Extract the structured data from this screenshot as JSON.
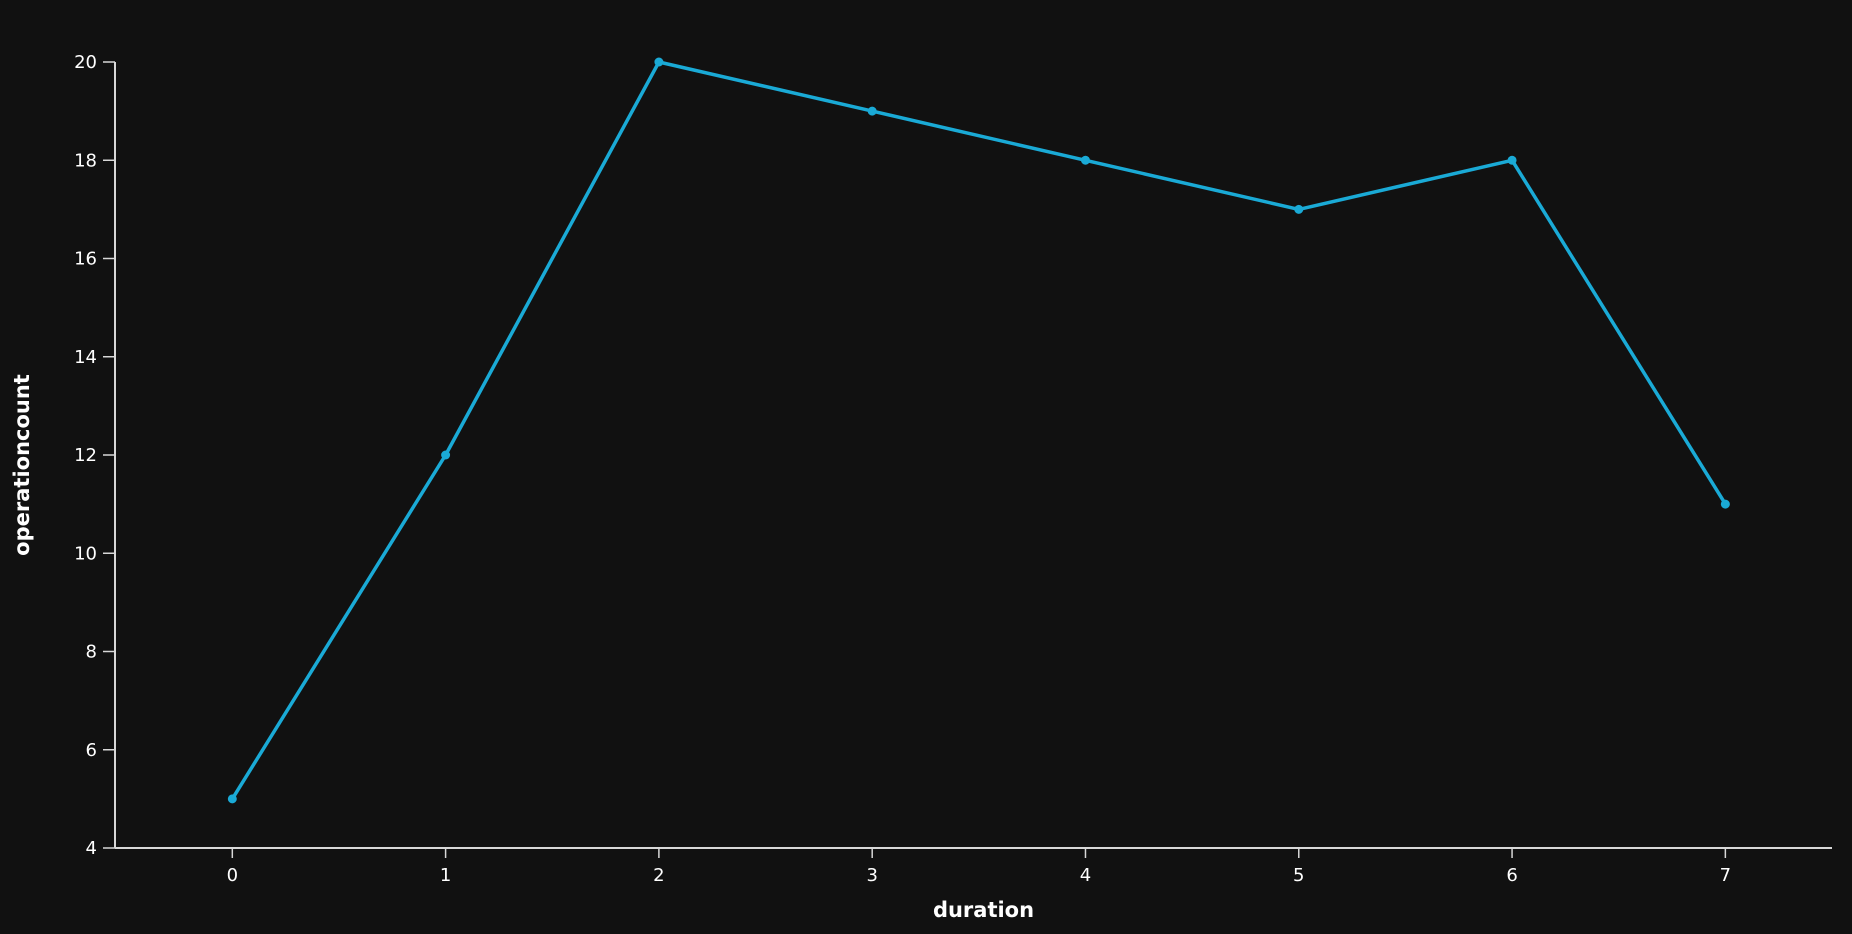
{
  "chart_data": {
    "type": "line",
    "xlabel": "duration",
    "ylabel": "operationcount",
    "x": [
      0,
      1,
      2,
      3,
      4,
      5,
      6,
      7
    ],
    "series": [
      {
        "values": [
          5,
          12,
          20,
          19,
          18,
          17,
          18,
          11
        ]
      }
    ],
    "xticks": [
      "0",
      "1",
      "2",
      "3",
      "4",
      "5",
      "6",
      "7"
    ],
    "yticks": [
      "4",
      "6",
      "8",
      "10",
      "12",
      "14",
      "16",
      "18",
      "20"
    ],
    "xlim": [
      -0.55,
      7.5
    ],
    "ylim": [
      4,
      20
    ],
    "grid": false,
    "line_color": "#1aaad6",
    "background": "#111111"
  }
}
